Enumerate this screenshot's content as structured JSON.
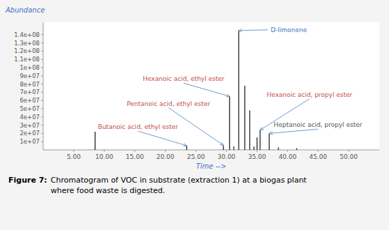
{
  "chart_data": {
    "type": "stem",
    "xlabel": "Time -->",
    "ylabel": "Abundance",
    "color": "#111111",
    "grid": false,
    "x": [
      8.5,
      23.5,
      29.5,
      30.5,
      31.2,
      32.0,
      33.0,
      33.8,
      34.5,
      35.0,
      35.5,
      37.0,
      38.5,
      41.5
    ],
    "values": [
      22000000,
      5000000,
      5500000,
      65000000,
      4000000,
      145000000,
      78000000,
      48000000,
      4000000,
      15000000,
      24000000,
      20000000,
      3000000,
      2000000
    ],
    "xlim": [
      0,
      55
    ],
    "ylim": [
      0,
      155000000
    ],
    "xticks": [
      {
        "value": 5,
        "label": "5.00"
      },
      {
        "value": 10,
        "label": "10.00"
      },
      {
        "value": 15,
        "label": "15.00"
      },
      {
        "value": 20,
        "label": "20.00"
      },
      {
        "value": 25,
        "label": "25.00"
      },
      {
        "value": 30,
        "label": "30.00"
      },
      {
        "value": 35,
        "label": "35.00"
      },
      {
        "value": 40,
        "label": "40.00"
      },
      {
        "value": 45,
        "label": "45.00"
      },
      {
        "value": 50,
        "label": "50.00"
      }
    ],
    "yticks": [
      {
        "value": 10000000,
        "label": "1e+07"
      },
      {
        "value": 20000000,
        "label": "2e+07"
      },
      {
        "value": 30000000,
        "label": "3e+07"
      },
      {
        "value": 40000000,
        "label": "4e+07"
      },
      {
        "value": 50000000,
        "label": "5e+07"
      },
      {
        "value": 60000000,
        "label": "6e+07"
      },
      {
        "value": 70000000,
        "label": "7e+07"
      },
      {
        "value": 80000000,
        "label": "8e+07"
      },
      {
        "value": 90000000,
        "label": "9e+07"
      },
      {
        "value": 100000000,
        "label": "1e+08"
      },
      {
        "value": 110000000,
        "label": "1.1e+08"
      },
      {
        "value": 120000000,
        "label": "1.2e+08"
      },
      {
        "value": 130000000,
        "label": "1.3e+08"
      },
      {
        "value": 140000000,
        "label": "1.4e+08"
      }
    ],
    "annotations": [
      {
        "text": "D-limonene",
        "x": 32.0,
        "y": 145000000,
        "color": "#4472c4"
      },
      {
        "text": "Hexanoic acid, ethyl ester",
        "x": 30.5,
        "y": 65000000,
        "color": "#c0504d"
      },
      {
        "text": "Pentanoic acid, ethyl ester",
        "x": 29.5,
        "y": 5500000,
        "color": "#c0504d"
      },
      {
        "text": "Butanoic acid, ethyl ester",
        "x": 23.5,
        "y": 5000000,
        "color": "#c0504d"
      },
      {
        "text": "Hexanoic acid, propyl ester",
        "x": 35.5,
        "y": 24000000,
        "color": "#c0504d"
      },
      {
        "text": "Heptanoic acid, propyl ester",
        "x": 37.0,
        "y": 20000000,
        "color": "#555555"
      }
    ],
    "caption": {
      "label": "Figure 7:",
      "text": "Chromatogram of VOC in substrate (extraction 1) at a biogas plant\nwhere food waste is digested."
    }
  }
}
